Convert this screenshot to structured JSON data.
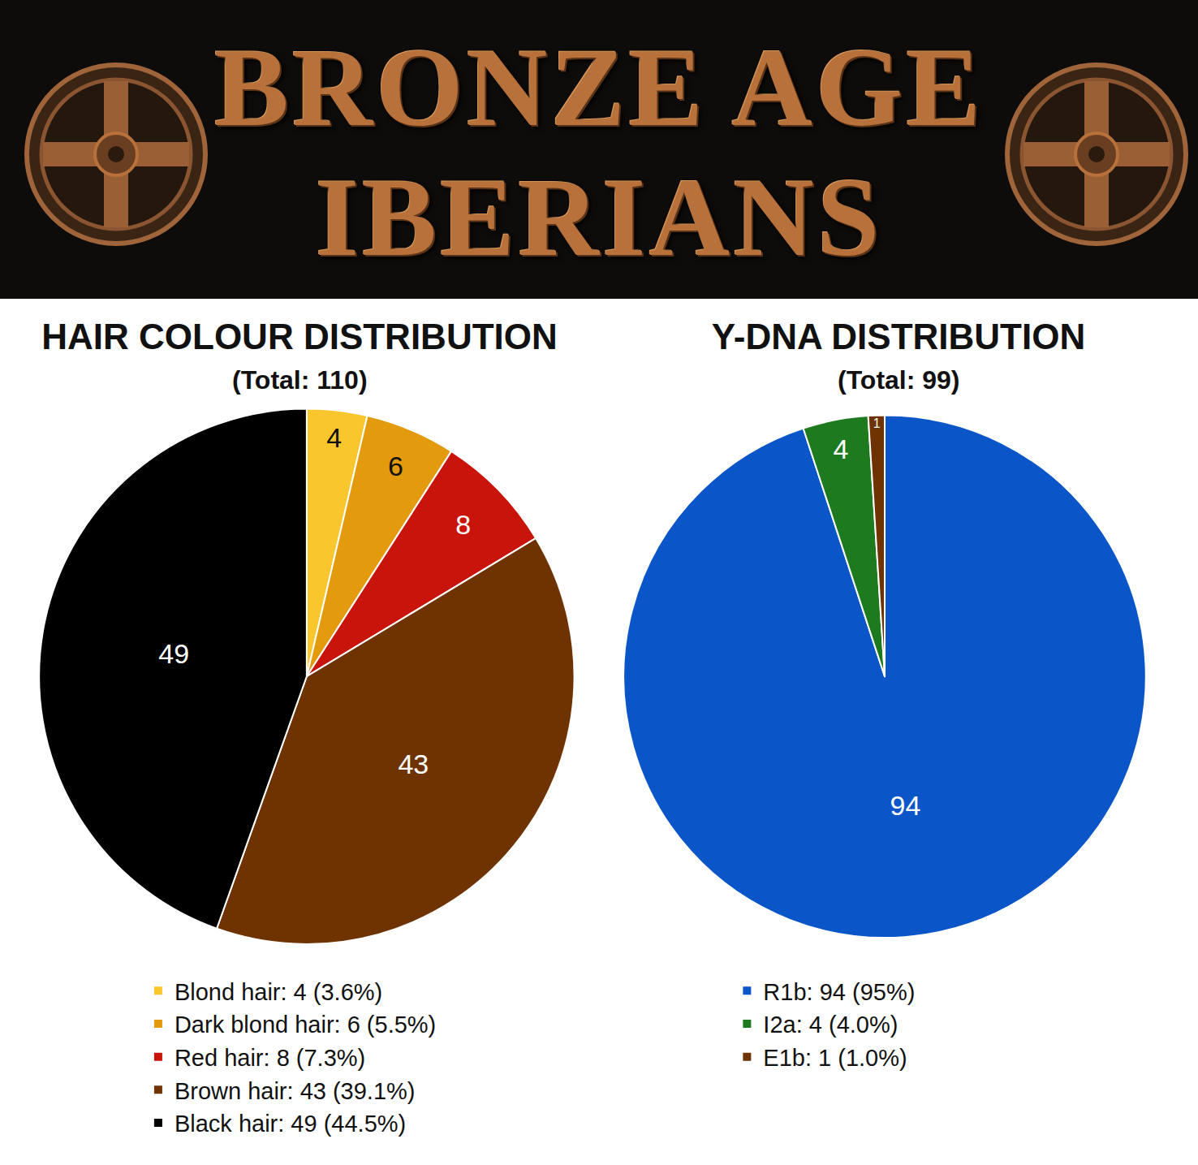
{
  "header": {
    "title_lines": [
      "BRONZE AGE",
      "IBERIANS"
    ]
  },
  "chart_data": [
    {
      "type": "pie",
      "title": "HAIR COLOUR DISTRIBUTION",
      "subtitle": "(Total: 110)",
      "categories": [
        "Blond hair: 4 (3.6%)",
        "Dark blond hair: 6 (5.5%)",
        "Red hair: 8 (7.3%)",
        "Brown hair: 43 (39.1%)",
        "Black hair: 49 (44.5%)"
      ],
      "values": [
        4,
        6,
        8,
        43,
        49
      ],
      "colors": [
        "#f9c62e",
        "#e39a0c",
        "#c8140a",
        "#6e3300",
        "#000000"
      ],
      "data_labels": true,
      "legend": "bottom"
    },
    {
      "type": "pie",
      "title": "Y-DNA DISTRIBUTION",
      "subtitle": "(Total: 99)",
      "categories": [
        "R1b: 94 (95%)",
        "I2a: 4 (4.0%)",
        "E1b: 1 (1.0%)"
      ],
      "values": [
        94,
        4,
        1
      ],
      "colors": [
        "#0a56c8",
        "#1e7a1e",
        "#6e3300"
      ],
      "data_labels": true,
      "legend": "bottom"
    }
  ]
}
